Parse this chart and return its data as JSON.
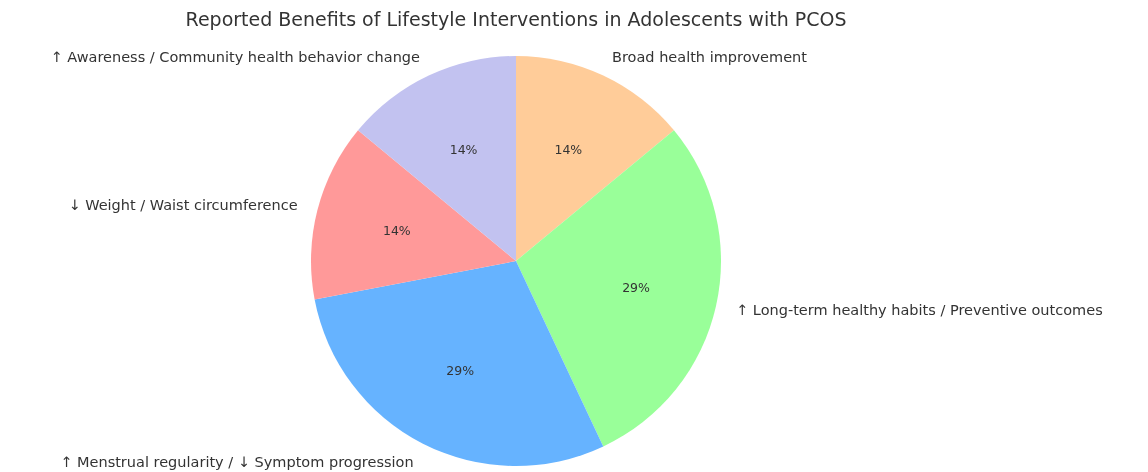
{
  "chart_data": {
    "type": "pie",
    "title": "Reported Benefits of Lifestyle Interventions in Adolescents with PCOS",
    "categories": [
      "Broad health improvement",
      "↑ Long-term healthy habits / Preventive outcomes",
      "↑ Menstrual regularity / ↓ Symptom progression",
      "↓ Weight / Waist circumference",
      "↑ Awareness / Community health behavior change"
    ],
    "values": [
      14,
      29,
      29,
      14,
      14
    ],
    "colors": [
      "#ffcc99",
      "#99ff99",
      "#66b3ff",
      "#ff9999",
      "#c2c2f0"
    ],
    "value_labels": [
      "14%",
      "29%",
      "29%",
      "14%",
      "14%"
    ]
  }
}
